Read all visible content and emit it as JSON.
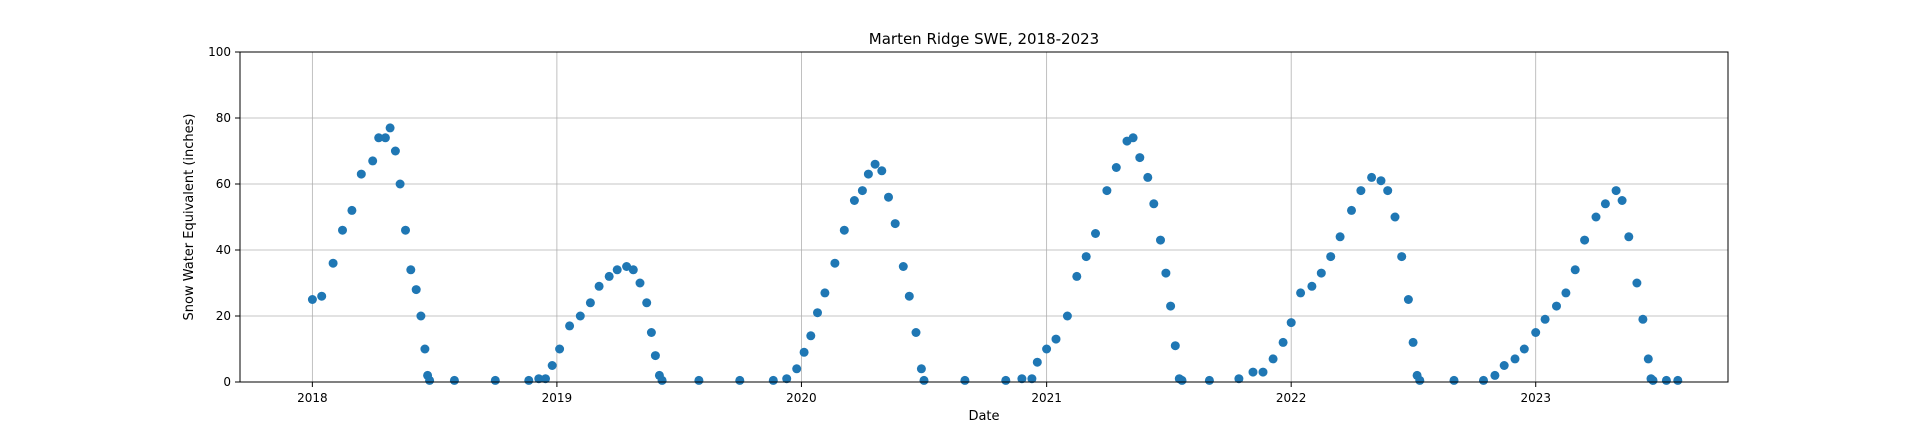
{
  "chart_data": {
    "type": "scatter",
    "title": "Marten Ridge SWE, 2018-2023",
    "xlabel": "Date",
    "ylabel": "Snow Water Equivalent (inches)",
    "xlim": [
      "2017-09-15",
      "2023-10-15"
    ],
    "ylim": [
      0,
      100
    ],
    "xticks": [
      "2018-01-01",
      "2019-01-01",
      "2020-01-01",
      "2021-01-01",
      "2022-01-01",
      "2023-01-01"
    ],
    "xtick_labels": [
      "2018",
      "2019",
      "2020",
      "2021",
      "2022",
      "2023"
    ],
    "yticks": [
      0,
      20,
      40,
      60,
      80,
      100
    ],
    "ytick_labels": [
      "0",
      "20",
      "40",
      "60",
      "80",
      "100"
    ],
    "grid": true,
    "marker_color": "#1f77b4",
    "series": [
      {
        "points": [
          [
            "2018-01-01",
            25
          ],
          [
            "2018-01-15",
            26
          ],
          [
            "2018-02-01",
            36
          ],
          [
            "2018-02-15",
            46
          ],
          [
            "2018-03-01",
            52
          ],
          [
            "2018-03-15",
            63
          ],
          [
            "2018-04-01",
            67
          ],
          [
            "2018-04-10",
            74
          ],
          [
            "2018-04-20",
            74
          ],
          [
            "2018-04-27",
            77
          ],
          [
            "2018-05-05",
            70
          ],
          [
            "2018-05-12",
            60
          ],
          [
            "2018-05-20",
            46
          ],
          [
            "2018-05-28",
            34
          ],
          [
            "2018-06-05",
            28
          ],
          [
            "2018-06-12",
            20
          ],
          [
            "2018-06-18",
            10
          ],
          [
            "2018-06-22",
            2
          ],
          [
            "2018-06-25",
            0.5
          ],
          [
            "2018-08-01",
            0.5
          ],
          [
            "2018-10-01",
            0.5
          ],
          [
            "2018-11-20",
            0.5
          ],
          [
            "2018-12-05",
            1
          ],
          [
            "2018-12-15",
            1
          ],
          [
            "2018-12-25",
            5
          ],
          [
            "2019-01-05",
            10
          ],
          [
            "2019-01-20",
            17
          ],
          [
            "2019-02-05",
            20
          ],
          [
            "2019-02-20",
            24
          ],
          [
            "2019-03-05",
            29
          ],
          [
            "2019-03-20",
            32
          ],
          [
            "2019-04-01",
            34
          ],
          [
            "2019-04-15",
            35
          ],
          [
            "2019-04-25",
            34
          ],
          [
            "2019-05-05",
            30
          ],
          [
            "2019-05-15",
            24
          ],
          [
            "2019-05-22",
            15
          ],
          [
            "2019-05-28",
            8
          ],
          [
            "2019-06-03",
            2
          ],
          [
            "2019-06-07",
            0.5
          ],
          [
            "2019-08-01",
            0.5
          ],
          [
            "2019-10-01",
            0.5
          ],
          [
            "2019-11-20",
            0.5
          ],
          [
            "2019-12-10",
            1
          ],
          [
            "2019-12-25",
            4
          ],
          [
            "2020-01-05",
            9
          ],
          [
            "2020-01-15",
            14
          ],
          [
            "2020-01-25",
            21
          ],
          [
            "2020-02-05",
            27
          ],
          [
            "2020-02-20",
            36
          ],
          [
            "2020-03-05",
            46
          ],
          [
            "2020-03-20",
            55
          ],
          [
            "2020-04-01",
            58
          ],
          [
            "2020-04-10",
            63
          ],
          [
            "2020-04-20",
            66
          ],
          [
            "2020-04-30",
            64
          ],
          [
            "2020-05-10",
            56
          ],
          [
            "2020-05-20",
            48
          ],
          [
            "2020-06-01",
            35
          ],
          [
            "2020-06-10",
            26
          ],
          [
            "2020-06-20",
            15
          ],
          [
            "2020-06-28",
            4
          ],
          [
            "2020-07-02",
            0.5
          ],
          [
            "2020-09-01",
            0.5
          ],
          [
            "2020-11-01",
            0.5
          ],
          [
            "2020-11-25",
            1
          ],
          [
            "2020-12-10",
            1
          ],
          [
            "2020-12-18",
            6
          ],
          [
            "2021-01-01",
            10
          ],
          [
            "2021-01-15",
            13
          ],
          [
            "2021-02-01",
            20
          ],
          [
            "2021-02-15",
            32
          ],
          [
            "2021-03-01",
            38
          ],
          [
            "2021-03-15",
            45
          ],
          [
            "2021-04-01",
            58
          ],
          [
            "2021-04-15",
            65
          ],
          [
            "2021-05-01",
            73
          ],
          [
            "2021-05-10",
            74
          ],
          [
            "2021-05-20",
            68
          ],
          [
            "2021-06-01",
            62
          ],
          [
            "2021-06-10",
            54
          ],
          [
            "2021-06-20",
            43
          ],
          [
            "2021-06-28",
            33
          ],
          [
            "2021-07-05",
            23
          ],
          [
            "2021-07-12",
            11
          ],
          [
            "2021-07-18",
            1
          ],
          [
            "2021-07-22",
            0.5
          ],
          [
            "2021-09-01",
            0.5
          ],
          [
            "2021-10-15",
            1
          ],
          [
            "2021-11-05",
            3
          ],
          [
            "2021-11-20",
            3
          ],
          [
            "2021-12-05",
            7
          ],
          [
            "2021-12-20",
            12
          ],
          [
            "2022-01-01",
            18
          ],
          [
            "2022-01-15",
            27
          ],
          [
            "2022-02-01",
            29
          ],
          [
            "2022-02-15",
            33
          ],
          [
            "2022-03-01",
            38
          ],
          [
            "2022-03-15",
            44
          ],
          [
            "2022-04-01",
            52
          ],
          [
            "2022-04-15",
            58
          ],
          [
            "2022-05-01",
            62
          ],
          [
            "2022-05-15",
            61
          ],
          [
            "2022-05-25",
            58
          ],
          [
            "2022-06-05",
            50
          ],
          [
            "2022-06-15",
            38
          ],
          [
            "2022-06-25",
            25
          ],
          [
            "2022-07-02",
            12
          ],
          [
            "2022-07-08",
            2
          ],
          [
            "2022-07-12",
            0.5
          ],
          [
            "2022-09-01",
            0.5
          ],
          [
            "2022-10-15",
            0.5
          ],
          [
            "2022-11-01",
            2
          ],
          [
            "2022-11-15",
            5
          ],
          [
            "2022-12-01",
            7
          ],
          [
            "2022-12-15",
            10
          ],
          [
            "2023-01-01",
            15
          ],
          [
            "2023-01-15",
            19
          ],
          [
            "2023-02-01",
            23
          ],
          [
            "2023-02-15",
            27
          ],
          [
            "2023-03-01",
            34
          ],
          [
            "2023-03-15",
            43
          ],
          [
            "2023-04-01",
            50
          ],
          [
            "2023-04-15",
            54
          ],
          [
            "2023-05-01",
            58
          ],
          [
            "2023-05-10",
            55
          ],
          [
            "2023-05-20",
            44
          ],
          [
            "2023-06-01",
            30
          ],
          [
            "2023-06-10",
            19
          ],
          [
            "2023-06-18",
            7
          ],
          [
            "2023-06-22",
            1
          ],
          [
            "2023-06-25",
            0.5
          ],
          [
            "2023-07-15",
            0.5
          ],
          [
            "2023-08-01",
            0.5
          ]
        ]
      }
    ]
  }
}
